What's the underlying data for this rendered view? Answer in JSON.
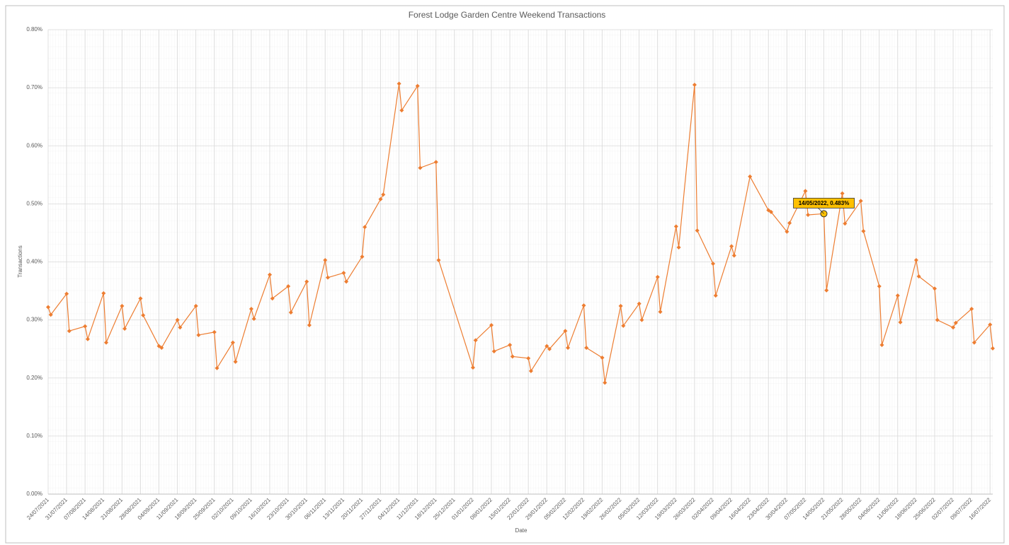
{
  "chart_data": {
    "type": "line",
    "title": "Forest Lodge Garden Centre Weekend Transactions",
    "xlabel": "Date",
    "ylabel": "Transactions",
    "annotation": {
      "text": "14/05/2022, 0.483%",
      "x": "14/05/2022",
      "y": 0.483
    },
    "x": [
      "24/07/2021",
      "25/07/2021",
      "31/07/2021",
      "01/08/2021",
      "07/08/2021",
      "08/08/2021",
      "14/08/2021",
      "15/08/2021",
      "21/08/2021",
      "22/08/2021",
      "28/08/2021",
      "29/08/2021",
      "04/09/2021",
      "05/09/2021",
      "11/09/2021",
      "12/09/2021",
      "18/09/2021",
      "19/09/2021",
      "25/09/2021",
      "26/09/2021",
      "02/10/2021",
      "03/10/2021",
      "09/10/2021",
      "10/10/2021",
      "16/10/2021",
      "17/10/2021",
      "23/10/2021",
      "24/10/2021",
      "30/10/2021",
      "31/10/2021",
      "06/11/2021",
      "07/11/2021",
      "13/11/2021",
      "14/11/2021",
      "20/11/2021",
      "21/11/2021",
      "27/11/2021",
      "28/11/2021",
      "04/12/2021",
      "05/12/2021",
      "11/12/2021",
      "12/12/2021",
      "18/12/2021",
      "19/12/2021",
      "01/01/2022",
      "02/01/2022",
      "08/01/2022",
      "09/01/2022",
      "15/01/2022",
      "16/01/2022",
      "22/01/2022",
      "23/01/2022",
      "29/01/2022",
      "30/01/2022",
      "05/02/2022",
      "06/02/2022",
      "12/02/2022",
      "13/02/2022",
      "19/02/2022",
      "20/02/2022",
      "26/02/2022",
      "27/02/2022",
      "05/03/2022",
      "06/03/2022",
      "12/03/2022",
      "13/03/2022",
      "19/03/2022",
      "20/03/2022",
      "26/03/2022",
      "27/03/2022",
      "02/04/2022",
      "03/04/2022",
      "09/04/2022",
      "10/04/2022",
      "16/04/2022",
      "23/04/2022",
      "24/04/2022",
      "30/04/2022",
      "01/05/2022",
      "07/05/2022",
      "08/05/2022",
      "14/05/2022",
      "15/05/2022",
      "21/05/2022",
      "22/05/2022",
      "28/05/2022",
      "29/05/2022",
      "04/06/2022",
      "05/06/2022",
      "11/06/2022",
      "12/06/2022",
      "18/06/2022",
      "19/06/2022",
      "25/06/2022",
      "26/06/2022",
      "02/07/2022",
      "03/07/2022",
      "09/07/2022",
      "10/07/2022",
      "16/07/2022",
      "17/07/2022"
    ],
    "series": [
      {
        "name": "Transactions",
        "color": "#ed7d31",
        "values": [
          0.322,
          0.309,
          0.345,
          0.281,
          0.289,
          0.267,
          0.346,
          0.261,
          0.324,
          0.285,
          0.337,
          0.308,
          0.255,
          0.252,
          0.3,
          0.287,
          0.324,
          0.274,
          0.279,
          0.217,
          0.261,
          0.228,
          0.319,
          0.302,
          0.378,
          0.337,
          0.358,
          0.313,
          0.366,
          0.291,
          0.403,
          0.373,
          0.381,
          0.366,
          0.409,
          0.46,
          0.508,
          0.516,
          0.707,
          0.661,
          0.703,
          0.562,
          0.572,
          0.403,
          0.218,
          0.265,
          0.291,
          0.246,
          0.257,
          0.237,
          0.234,
          0.212,
          0.255,
          0.25,
          0.281,
          0.252,
          0.325,
          0.252,
          0.235,
          0.192,
          0.324,
          0.29,
          0.328,
          0.3,
          0.374,
          0.314,
          0.461,
          0.425,
          0.705,
          0.454,
          0.397,
          0.342,
          0.427,
          0.411,
          0.547,
          0.489,
          0.486,
          0.452,
          0.467,
          0.522,
          0.481,
          0.483,
          0.351,
          0.518,
          0.466,
          0.505,
          0.453,
          0.358,
          0.257,
          0.342,
          0.296,
          0.403,
          0.375,
          0.354,
          0.3,
          0.287,
          0.295,
          0.319,
          0.261,
          0.292,
          0.251
        ]
      }
    ],
    "xlim": [
      "24/07/2021",
      "17/07/2022"
    ],
    "xticks": [
      "24/07/2021",
      "31/07/2021",
      "07/08/2021",
      "14/08/2021",
      "21/08/2021",
      "28/08/2021",
      "04/09/2021",
      "11/09/2021",
      "18/09/2021",
      "25/09/2021",
      "02/10/2021",
      "09/10/2021",
      "16/10/2021",
      "23/10/2021",
      "30/10/2021",
      "06/11/2021",
      "13/11/2021",
      "20/11/2021",
      "27/11/2021",
      "04/12/2021",
      "11/12/2021",
      "18/12/2021",
      "25/12/2021",
      "01/01/2022",
      "08/01/2022",
      "15/01/2022",
      "22/01/2022",
      "29/01/2022",
      "05/02/2022",
      "12/02/2022",
      "19/02/2022",
      "26/02/2022",
      "05/03/2022",
      "12/03/2022",
      "19/03/2022",
      "26/03/2022",
      "02/04/2022",
      "09/04/2022",
      "16/04/2022",
      "23/04/2022",
      "30/04/2022",
      "07/05/2022",
      "14/05/2022",
      "21/05/2022",
      "28/05/2022",
      "04/06/2022",
      "11/06/2022",
      "18/06/2022",
      "25/06/2022",
      "02/07/2022",
      "09/07/2022",
      "16/07/2022"
    ],
    "ylim": [
      0,
      0.8
    ],
    "yticks": [
      {
        "value": 0,
        "label": "0.00%"
      },
      {
        "value": 0.1,
        "label": "0.10%"
      },
      {
        "value": 0.2,
        "label": "0.20%"
      },
      {
        "value": 0.3,
        "label": "0.30%"
      },
      {
        "value": 0.4,
        "label": "0.40%"
      },
      {
        "value": 0.5,
        "label": "0.50%"
      },
      {
        "value": 0.6,
        "label": "0.60%"
      },
      {
        "value": 0.7,
        "label": "0.70%"
      },
      {
        "value": 0.8,
        "label": "0.80%"
      }
    ],
    "grid": true
  }
}
